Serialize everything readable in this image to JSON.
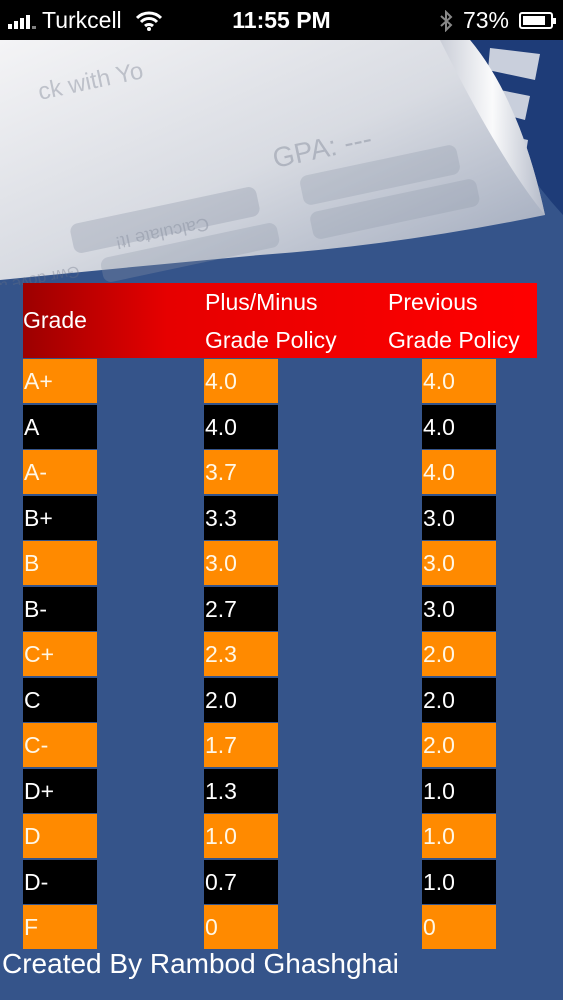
{
  "status_bar": {
    "carrier": "Turkcell",
    "time": "11:55 PM",
    "battery": "73%"
  },
  "background_card": {
    "text_1": "ck with Yo",
    "text_2": "GPA: ---",
    "button_label": "Calculate It!",
    "text_3": "Gwr dove a"
  },
  "table": {
    "headers": {
      "grade": "Grade",
      "plus_minus_line1": "Plus/Minus",
      "plus_minus_line2": "Grade Policy",
      "previous_line1": "Previous",
      "previous_line2": "Grade Policy"
    },
    "rows": [
      {
        "grade": "A+",
        "plus_minus": "4.0",
        "previous": "4.0"
      },
      {
        "grade": "A",
        "plus_minus": "4.0",
        "previous": "4.0"
      },
      {
        "grade": "A-",
        "plus_minus": "3.7",
        "previous": "4.0"
      },
      {
        "grade": "B+",
        "plus_minus": "3.3",
        "previous": "3.0"
      },
      {
        "grade": "B",
        "plus_minus": "3.0",
        "previous": "3.0"
      },
      {
        "grade": "B-",
        "plus_minus": "2.7",
        "previous": "3.0"
      },
      {
        "grade": "C+",
        "plus_minus": "2.3",
        "previous": "2.0"
      },
      {
        "grade": "C",
        "plus_minus": "2.0",
        "previous": "2.0"
      },
      {
        "grade": "C-",
        "plus_minus": "1.7",
        "previous": "2.0"
      },
      {
        "grade": "D+",
        "plus_minus": "1.3",
        "previous": "1.0"
      },
      {
        "grade": "D",
        "plus_minus": "1.0",
        "previous": "1.0"
      },
      {
        "grade": "D-",
        "plus_minus": "0.7",
        "previous": "1.0"
      },
      {
        "grade": "F",
        "plus_minus": "0",
        "previous": "0"
      }
    ]
  },
  "footer": "Created By Rambod Ghashghai",
  "colors": {
    "background": "#35548a",
    "header_red": "#ff0000",
    "row_orange": "#ff8a00",
    "row_black": "#000000"
  }
}
